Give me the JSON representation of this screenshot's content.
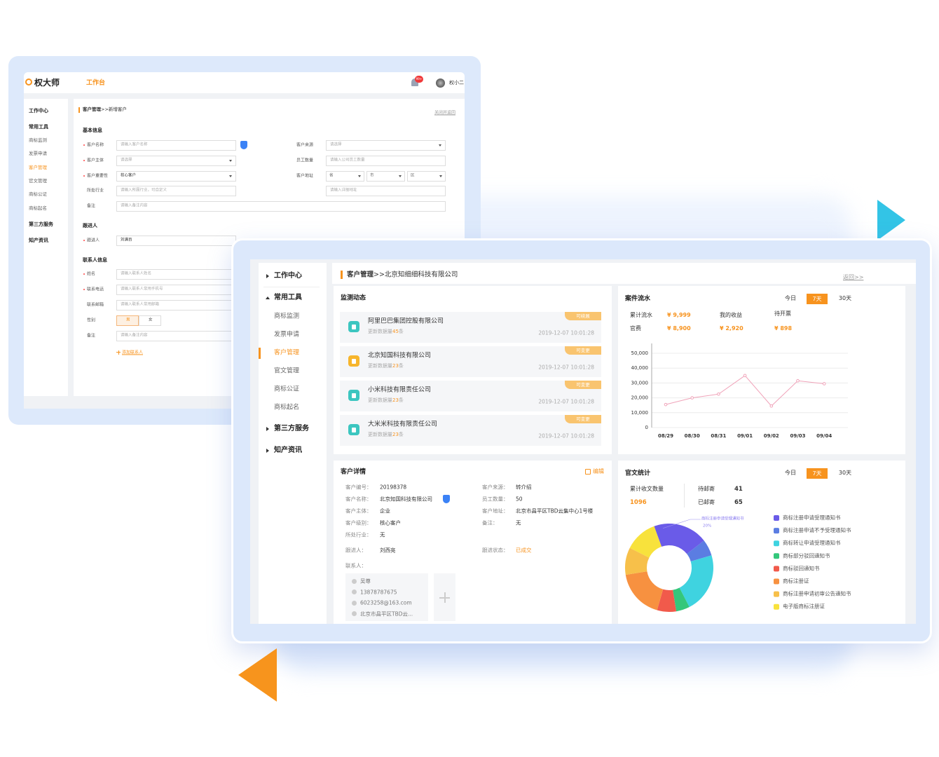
{
  "back": {
    "logo": "权大师",
    "nav": "工作台",
    "badge": "99+",
    "user": "权小二",
    "sidebar": [
      {
        "title": "工作中心"
      },
      {
        "title": "常用工具",
        "items": [
          "商标监测",
          "发票申请",
          "客户管理",
          "官文管理",
          "商标公证",
          "商标起名"
        ]
      },
      {
        "title": "第三方服务"
      },
      {
        "title": "知产资讯"
      }
    ],
    "breadcrumb": [
      "客户管理",
      ">>新增客户"
    ],
    "close": "关闭并返回",
    "basic": {
      "title": "基本信息",
      "left": [
        {
          "label": "客户名称",
          "placeholder": "请输入客户名称",
          "required": true
        },
        {
          "label": "客户主体",
          "placeholder": "请选择",
          "required": true,
          "select": true
        },
        {
          "label": "客户重要性",
          "value": "核心客户",
          "required": true,
          "select": true
        },
        {
          "label": "所处行业",
          "placeholder": "请输入所属行业，可自定义"
        },
        {
          "label": "备注",
          "placeholder": "请输入备注内容"
        }
      ],
      "right": [
        {
          "label": "客户来源",
          "placeholder": "请选择",
          "select": true
        },
        {
          "label": "员工数量",
          "placeholder": "请输入公司员工数量"
        },
        {
          "label": "客户地址",
          "parts": [
            "省",
            "市",
            "区"
          ]
        },
        {
          "placeholder": "请输入详细地址"
        }
      ]
    },
    "follow": {
      "title": "跟进人",
      "label": "跟进人",
      "value": "刘满百",
      "required": true
    },
    "contact": {
      "title": "联系人信息",
      "fields": [
        {
          "label": "姓名",
          "placeholder": "请输入联系人姓名",
          "required": true
        },
        {
          "label": "联系电话",
          "placeholder": "请输入联系人常用手机号",
          "required": true
        },
        {
          "label": "联系邮箱",
          "placeholder": "请输入联系人常用邮箱"
        },
        {
          "label": "性别",
          "options": [
            "男",
            "女"
          ]
        },
        {
          "label": "备注",
          "placeholder": "请输入备注内容"
        }
      ],
      "add": "添加联系人"
    }
  },
  "front": {
    "sidebar": [
      {
        "title": "工作中心"
      },
      {
        "title": "常用工具",
        "items": [
          "商标监测",
          "发票申请",
          "客户管理",
          "官文管理",
          "商标公证",
          "商标起名"
        ]
      },
      {
        "title": "第三方服务"
      },
      {
        "title": "知产资讯"
      }
    ],
    "breadcrumb": [
      "客户管理",
      ">>北京知细细科技有限公司"
    ],
    "back": "返回>>",
    "monitor": {
      "title": "监测动态",
      "update_label": "更新数据量",
      "unit": "条",
      "items": [
        {
          "name": "阿里巴巴集团控股有限公司",
          "tag": "可续展",
          "count": "45",
          "date": "2019-12-07 10:01:28"
        },
        {
          "name": "北京知国科技有限公司",
          "tag": "可变更",
          "count": "23",
          "date": "2019-12-07 10:01:28"
        },
        {
          "name": "小米科技有限责任公司",
          "tag": "可变更",
          "count": "23",
          "date": "2019-12-07 10:01:28"
        },
        {
          "name": "大米米科技有限责任公司",
          "tag": "可变更",
          "count": "23",
          "date": "2019-12-07 10:01:28"
        }
      ]
    },
    "flow": {
      "title": "案件流水",
      "tabs": [
        "今日",
        "7天",
        "30天"
      ],
      "stats": [
        {
          "label": "累计流水",
          "value": "¥ 9,999"
        },
        {
          "label": "官费",
          "value": "¥ 8,900"
        },
        {
          "label": "我的收益",
          "value": "¥ 2,920"
        },
        {
          "label": "待开票",
          "value": "¥ 898"
        }
      ]
    },
    "detail": {
      "title": "客户详情",
      "edit": "编辑",
      "left": [
        {
          "label": "客户编号：",
          "value": "20198378"
        },
        {
          "label": "客户名称：",
          "value": "北京知国科技有限公司"
        },
        {
          "label": "客户主体：",
          "value": "企业"
        },
        {
          "label": "客户级别：",
          "value": "核心客户"
        },
        {
          "label": "所处行业：",
          "value": "无"
        }
      ],
      "right": [
        {
          "label": "客户来源：",
          "value": "转介绍"
        },
        {
          "label": "员工数量：",
          "value": "50"
        },
        {
          "label": "客户地址：",
          "value": "北京市昌平区TBD云集中心1号楼"
        },
        {
          "label": "备注：",
          "value": "无"
        }
      ],
      "follower": {
        "label": "跟进人：",
        "value": "刘西亮"
      },
      "status": {
        "label": "跟进状态：",
        "value": "已成交"
      },
      "contacts_label": "联系人：",
      "contact": [
        "吴尊",
        "13878787675",
        "6023258@163.com",
        "北京市昌平区TBD云..."
      ]
    },
    "docs": {
      "title": "官文统计",
      "tabs": [
        "今日",
        "7天",
        "30天"
      ],
      "total": {
        "label": "累计收文数量",
        "value": "1096"
      },
      "pending": {
        "label": "待邮寄",
        "value": "41"
      },
      "mailed": {
        "label": "已邮寄",
        "value": "65"
      }
    }
  },
  "chart_data": [
    {
      "type": "line",
      "categories": [
        "08/29",
        "08/30",
        "08/31",
        "09/01",
        "09/02",
        "09/03",
        "09/04"
      ],
      "values": [
        15500,
        20000,
        22500,
        35000,
        14500,
        31500,
        29500
      ],
      "color": "#f0a3b9",
      "ylim": [
        0,
        50000
      ],
      "yticks": [
        0,
        {
          "value": 10000,
          "label": "10,000"
        },
        {
          "value": 20000,
          "label": "20,000"
        },
        {
          "value": 30000,
          "label": "30,000"
        },
        {
          "value": 40000,
          "label": "40,000"
        },
        {
          "value": 50000,
          "label": "50,000"
        }
      ],
      "grid": true
    },
    {
      "type": "pie",
      "categories": [
        "商标注册申请受理通知书",
        "商标注册申请不予受理通知书",
        "商标转让申请受理通知书",
        "商标部分驳回通知书",
        "商标驳回通知书",
        "商标注册证",
        "商标注册申请初审公告通知书",
        "电子版商标注册证"
      ],
      "values": [
        20,
        6,
        22,
        5,
        7,
        18,
        10,
        12
      ],
      "value_labels": [
        "20%",
        null,
        null,
        null,
        null,
        null,
        null,
        null
      ],
      "colors": [
        "#6a5be8",
        "#5b7de2",
        "#3fd3e0",
        "#34c77b",
        "#f15a4b",
        "#f79140",
        "#f7c04a",
        "#f8e23c"
      ],
      "donut": true
    }
  ]
}
